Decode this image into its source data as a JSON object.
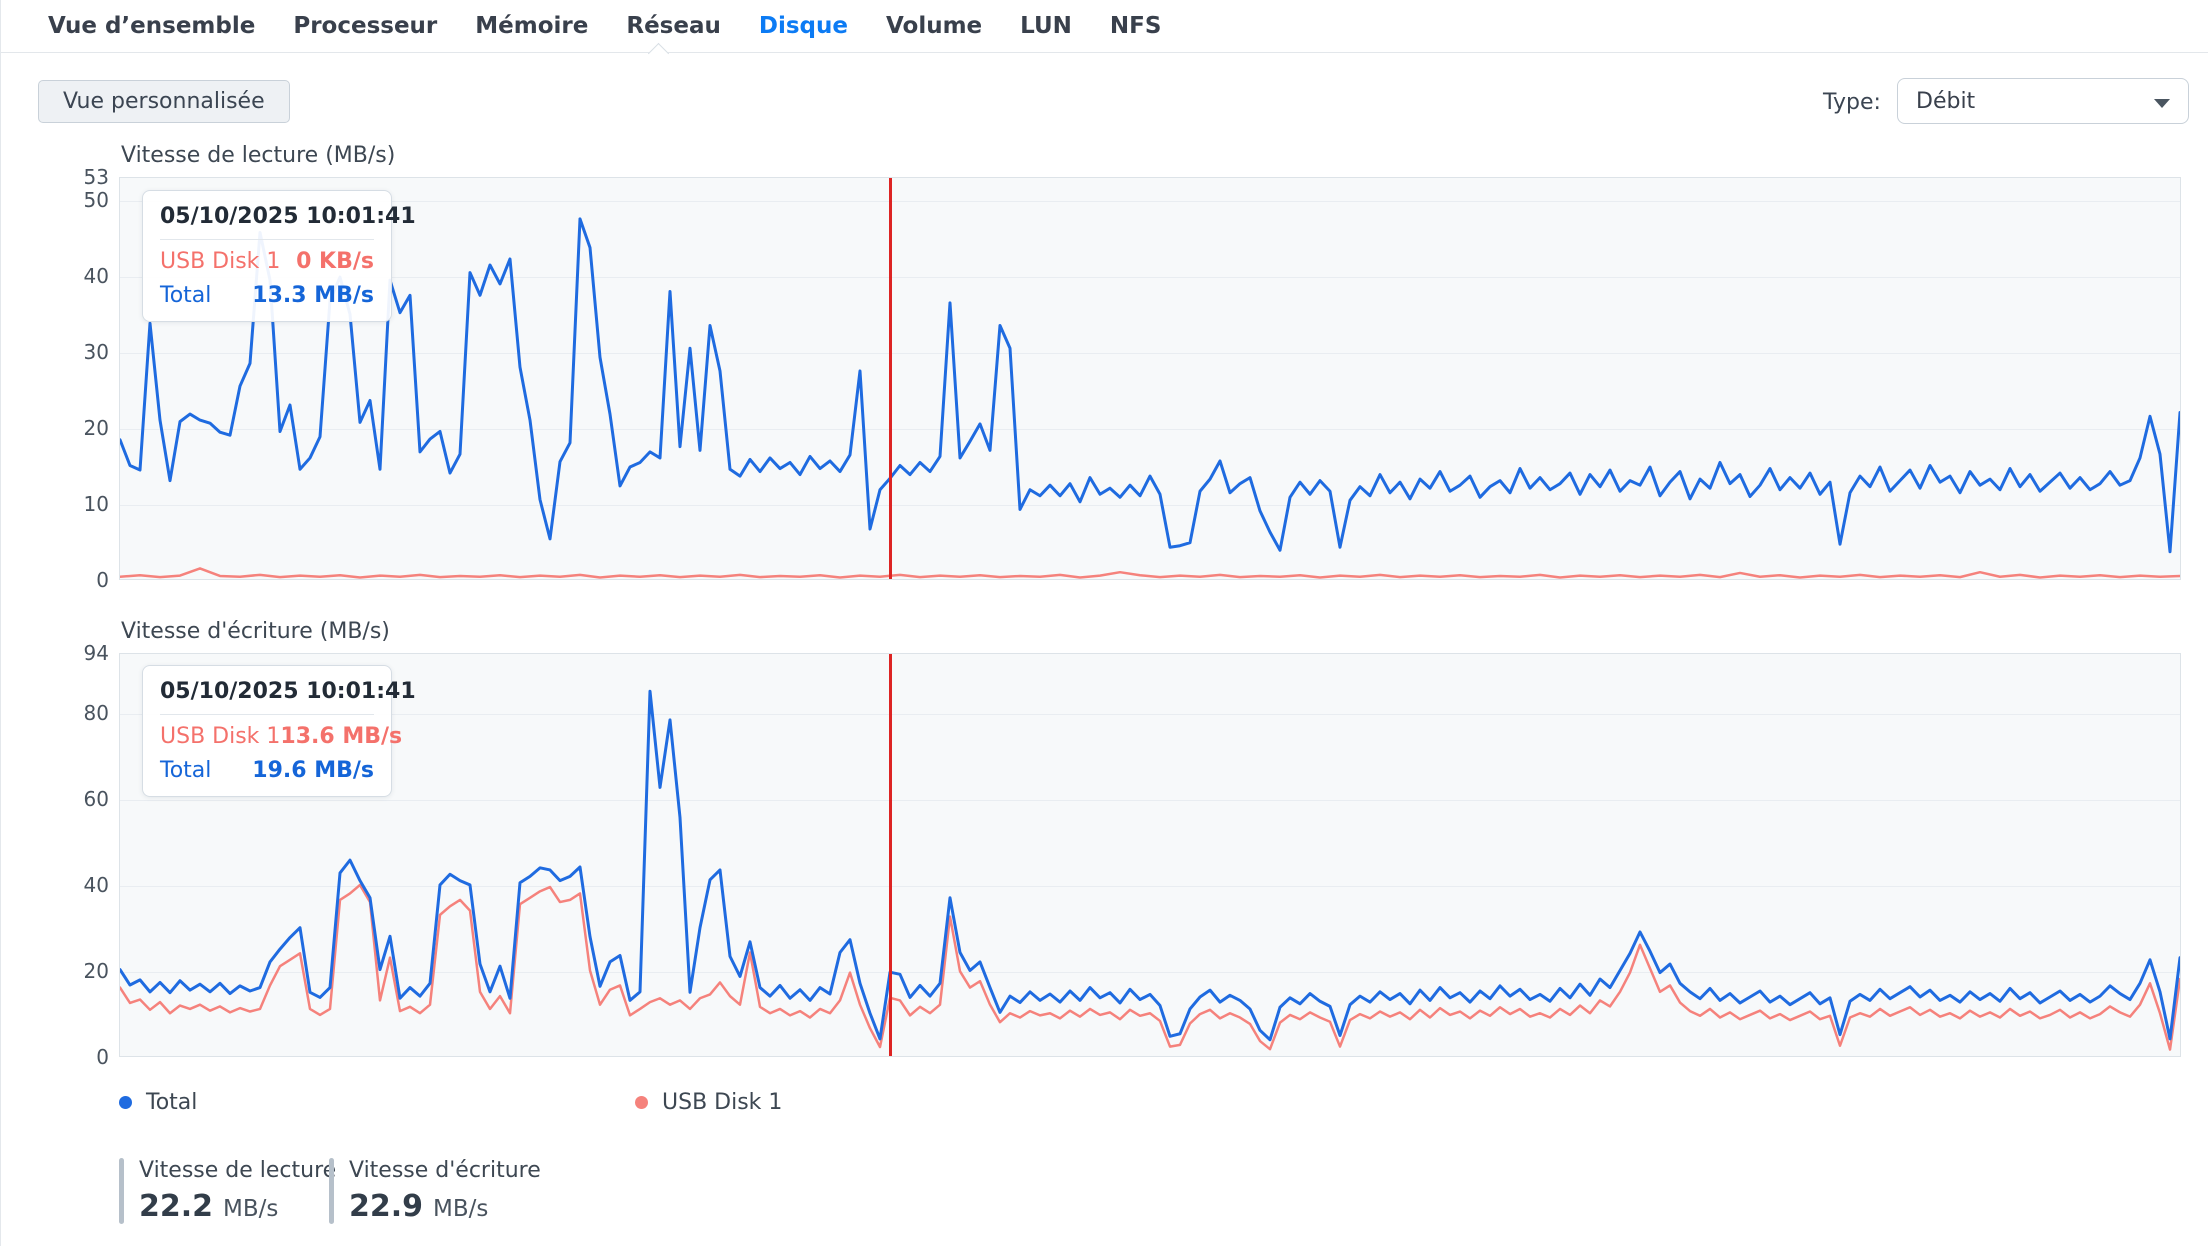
{
  "tabs": {
    "items": [
      "Vue d’ensemble",
      "Processeur",
      "Mémoire",
      "Réseau",
      "Disque",
      "Volume",
      "LUN",
      "NFS"
    ],
    "active": "Disque"
  },
  "toolbar": {
    "custom_view_label": "Vue personnalisée",
    "type_label": "Type:",
    "type_value": "Débit"
  },
  "legend": {
    "total": "Total",
    "usb": "USB Disk 1"
  },
  "summary": [
    {
      "label": "Vitesse de lecture",
      "value": "22.2",
      "unit": "MB/s"
    },
    {
      "label": "Vitesse d'écriture",
      "value": "22.9",
      "unit": "MB/s"
    }
  ],
  "colors": {
    "accent_blue": "#0c7bf4",
    "line_blue": "#1f6be0",
    "line_red": "#f5827c",
    "cursor_red": "#dd2423"
  },
  "chart_data": [
    {
      "type": "line",
      "title": "Vitesse de lecture (MB/s)",
      "ylabel": "MB/s",
      "ymax": 53,
      "ylim": [
        0,
        53
      ],
      "yticks": [
        53,
        50,
        40,
        30,
        20,
        10,
        0
      ],
      "grid": true,
      "legend_position": "bottom",
      "cursor_x_fraction": 0.3734,
      "tooltip": {
        "timestamp": "05/10/2025 10:01:41",
        "rows": [
          {
            "label": "USB Disk 1",
            "value": "0 KB/s"
          },
          {
            "label": "Total",
            "value": "13.3 MB/s"
          }
        ]
      },
      "series": [
        {
          "name": "USB Disk 1",
          "color": "#f5827c",
          "values": [
            0.3,
            0.5,
            0.25,
            0.45,
            1.4,
            0.4,
            0.3,
            0.55,
            0.25,
            0.45,
            0.3,
            0.5,
            0.2,
            0.45,
            0.3,
            0.55,
            0.25,
            0.4,
            0.3,
            0.5,
            0.25,
            0.45,
            0.3,
            0.55,
            0.2,
            0.45,
            0.3,
            0.5,
            0.25,
            0.45,
            0.3,
            0.55,
            0.25,
            0.4,
            0.3,
            0.5,
            0.2,
            0.45,
            0.3,
            0.55,
            0.25,
            0.45,
            0.3,
            0.5,
            0.25,
            0.4,
            0.3,
            0.55,
            0.2,
            0.45,
            0.9,
            0.5,
            0.25,
            0.45,
            0.3,
            0.55,
            0.25,
            0.4,
            0.3,
            0.5,
            0.2,
            0.45,
            0.3,
            0.55,
            0.25,
            0.45,
            0.3,
            0.5,
            0.25,
            0.4,
            0.3,
            0.55,
            0.2,
            0.45,
            0.3,
            0.5,
            0.25,
            0.45,
            0.3,
            0.55,
            0.25,
            0.8,
            0.3,
            0.5,
            0.2,
            0.45,
            0.3,
            0.55,
            0.25,
            0.45,
            0.3,
            0.5,
            0.25,
            0.9,
            0.3,
            0.55,
            0.2,
            0.45,
            0.3,
            0.5,
            0.25,
            0.45,
            0.3,
            0.4
          ]
        },
        {
          "name": "Total",
          "color": "#1f6be0",
          "values": [
            18.4,
            15.0,
            14.4,
            33.8,
            21.0,
            13.0,
            20.8,
            21.8,
            21.0,
            20.6,
            19.4,
            19.0,
            25.5,
            28.5,
            45.8,
            39.5,
            19.5,
            23.0,
            14.5,
            16.0,
            18.8,
            36.8,
            39.9,
            35.0,
            20.7,
            23.6,
            14.5,
            39.5,
            35.2,
            37.5,
            16.8,
            18.5,
            19.5,
            14.0,
            16.5,
            40.5,
            37.5,
            41.5,
            39.0,
            42.3,
            28.0,
            21.0,
            10.5,
            5.3,
            15.5,
            18.0,
            47.6,
            43.8,
            29.3,
            21.8,
            12.3,
            14.8,
            15.4,
            16.8,
            16.0,
            38.0,
            17.5,
            30.5,
            17.0,
            33.5,
            27.5,
            14.5,
            13.6,
            15.8,
            14.2,
            16.0,
            14.6,
            15.4,
            13.8,
            16.2,
            14.6,
            15.6,
            14.2,
            16.4,
            27.5,
            6.6,
            11.8,
            13.3,
            15.0,
            13.8,
            15.4,
            14.2,
            16.2,
            36.5,
            16.0,
            18.2,
            20.5,
            17.0,
            33.5,
            30.5,
            9.2,
            11.8,
            11.0,
            12.4,
            11.0,
            12.6,
            10.2,
            13.4,
            11.2,
            12.0,
            10.8,
            12.4,
            11.0,
            13.6,
            11.2,
            4.2,
            4.4,
            4.8,
            11.6,
            13.2,
            15.6,
            11.4,
            12.6,
            13.4,
            9.0,
            6.2,
            3.8,
            10.8,
            12.8,
            11.2,
            13.0,
            11.6,
            4.2,
            10.4,
            12.2,
            11.0,
            13.8,
            11.4,
            12.8,
            10.6,
            13.2,
            12.0,
            14.2,
            11.6,
            12.4,
            13.6,
            10.8,
            12.2,
            13.0,
            11.4,
            14.6,
            12.0,
            13.4,
            11.8,
            12.6,
            14.0,
            11.2,
            13.8,
            12.2,
            14.4,
            11.6,
            13.0,
            12.4,
            14.8,
            11.0,
            12.8,
            14.2,
            10.6,
            13.2,
            12.0,
            15.4,
            12.6,
            13.8,
            10.9,
            12.4,
            14.6,
            11.8,
            13.4,
            12.0,
            14.0,
            11.2,
            12.8,
            4.6,
            11.4,
            13.6,
            12.2,
            14.8,
            11.6,
            13.0,
            14.4,
            12.0,
            15.0,
            12.8,
            13.6,
            11.4,
            14.2,
            12.4,
            13.2,
            11.8,
            14.6,
            12.2,
            13.8,
            11.6,
            12.8,
            14.0,
            12.0,
            13.4,
            11.8,
            12.6,
            14.2,
            12.4,
            13.0,
            16.0,
            21.5,
            16.5,
            3.6,
            22.0
          ]
        }
      ]
    },
    {
      "type": "line",
      "title": "Vitesse d'écriture (MB/s)",
      "ylabel": "MB/s",
      "ymax": 94,
      "ylim": [
        0,
        94
      ],
      "yticks": [
        94,
        80,
        60,
        40,
        20,
        0
      ],
      "grid": true,
      "legend_position": "bottom",
      "cursor_x_fraction": 0.3734,
      "tooltip": {
        "timestamp": "05/10/2025 10:01:41",
        "rows": [
          {
            "label": "USB Disk 1",
            "value": "13.6 MB/s"
          },
          {
            "label": "Total",
            "value": "19.6 MB/s"
          }
        ]
      },
      "series": [
        {
          "name": "USB Disk 1",
          "color": "#f5827c",
          "values": [
            16.0,
            12.4,
            13.2,
            10.8,
            12.6,
            10.0,
            11.8,
            11.0,
            12.0,
            10.6,
            11.6,
            10.2,
            11.2,
            10.4,
            11.0,
            16.5,
            21.0,
            22.5,
            24.0,
            11.0,
            9.6,
            11.0,
            36.5,
            38.0,
            40.0,
            36.0,
            13.0,
            23.0,
            10.5,
            11.5,
            10.0,
            12.0,
            33.0,
            35.0,
            36.5,
            34.0,
            15.0,
            11.0,
            14.0,
            10.0,
            35.5,
            37.0,
            38.5,
            39.5,
            36.0,
            36.5,
            38.0,
            20.0,
            12.0,
            15.5,
            16.5,
            9.5,
            11.0,
            12.6,
            13.5,
            12.0,
            13.0,
            11.0,
            13.5,
            14.4,
            17.2,
            14.0,
            12.0,
            24.2,
            11.5,
            10.0,
            11.0,
            9.5,
            10.5,
            9.0,
            11.0,
            10.0,
            13.0,
            19.5,
            12.0,
            6.5,
            2.1,
            13.6,
            13.0,
            9.5,
            11.5,
            10.0,
            12.0,
            32.6,
            19.8,
            16.0,
            17.5,
            12.0,
            7.9,
            10.0,
            9.0,
            10.5,
            9.5,
            10.0,
            8.8,
            10.6,
            9.2,
            11.0,
            9.6,
            10.2,
            8.6,
            10.8,
            9.4,
            10.0,
            8.2,
            2.2,
            2.6,
            7.6,
            9.8,
            10.8,
            8.8,
            10.0,
            9.0,
            7.5,
            3.5,
            1.6,
            7.8,
            9.6,
            8.6,
            10.2,
            9.0,
            8.0,
            2.2,
            8.4,
            9.8,
            8.8,
            10.4,
            9.2,
            10.2,
            8.6,
            10.8,
            9.0,
            11.2,
            9.6,
            10.4,
            8.8,
            10.6,
            9.4,
            11.4,
            9.8,
            11.0,
            9.2,
            10.0,
            9.0,
            11.0,
            9.6,
            11.8,
            10.0,
            13.0,
            11.6,
            15.0,
            19.5,
            26.0,
            20.5,
            15.0,
            16.5,
            12.5,
            10.5,
            9.4,
            11.0,
            9.0,
            10.2,
            8.6,
            9.6,
            10.6,
            8.8,
            9.8,
            8.4,
            9.4,
            10.4,
            8.6,
            9.4,
            2.4,
            9.0,
            10.0,
            9.2,
            11.0,
            9.4,
            10.4,
            11.4,
            9.6,
            10.8,
            9.2,
            10.0,
            8.8,
            10.6,
            9.2,
            10.2,
            9.0,
            11.0,
            9.4,
            10.4,
            8.8,
            9.6,
            10.8,
            9.0,
            10.2,
            8.8,
            9.8,
            11.6,
            10.2,
            9.2,
            12.0,
            17.0,
            10.0,
            1.5,
            18.0
          ]
        },
        {
          "name": "Total",
          "color": "#1f6be0",
          "values": [
            20.2,
            16.6,
            17.8,
            15.0,
            17.2,
            14.8,
            17.6,
            15.4,
            16.8,
            15.0,
            17.0,
            14.6,
            16.4,
            15.2,
            16.0,
            22.0,
            25.0,
            27.7,
            30.0,
            14.9,
            13.7,
            16.0,
            42.8,
            45.8,
            41.0,
            37.0,
            20.2,
            28.0,
            13.5,
            16.0,
            14.0,
            17.0,
            40.0,
            42.5,
            41.0,
            40.0,
            21.5,
            15.0,
            21.0,
            13.5,
            40.5,
            42.0,
            44.0,
            43.5,
            41.0,
            42.0,
            44.2,
            27.9,
            16.3,
            22.0,
            23.5,
            13.0,
            15.0,
            85.3,
            62.8,
            78.6,
            55.8,
            14.9,
            30.0,
            41.2,
            43.5,
            23.3,
            18.6,
            26.7,
            16.0,
            14.0,
            16.5,
            13.5,
            15.5,
            13.0,
            16.0,
            14.5,
            24.2,
            27.2,
            17.0,
            10.0,
            4.0,
            19.6,
            19.1,
            13.7,
            16.5,
            14.0,
            17.0,
            37.0,
            24.2,
            20.0,
            22.0,
            16.0,
            10.2,
            14.0,
            12.5,
            15.0,
            13.0,
            14.5,
            12.6,
            15.2,
            13.0,
            16.0,
            13.6,
            14.8,
            12.4,
            15.6,
            13.2,
            14.4,
            11.8,
            4.6,
            5.2,
            11.0,
            13.8,
            15.4,
            12.6,
            14.2,
            13.0,
            11.0,
            6.0,
            3.8,
            11.4,
            13.6,
            12.2,
            14.6,
            12.8,
            11.6,
            4.8,
            12.0,
            14.0,
            12.6,
            15.0,
            13.2,
            14.6,
            12.2,
            15.4,
            13.0,
            16.0,
            13.6,
            14.8,
            12.6,
            15.2,
            13.4,
            16.4,
            14.0,
            15.6,
            13.2,
            14.4,
            12.8,
            15.8,
            13.6,
            16.8,
            14.2,
            18.0,
            16.0,
            20.0,
            24.0,
            29.0,
            24.5,
            19.5,
            21.5,
            17.0,
            15.0,
            13.4,
            15.8,
            13.0,
            14.6,
            12.4,
            13.8,
            15.2,
            12.6,
            14.0,
            12.0,
            13.4,
            14.8,
            12.2,
            13.6,
            5.0,
            12.8,
            14.4,
            13.0,
            15.6,
            13.4,
            14.8,
            16.2,
            13.8,
            15.4,
            13.0,
            14.2,
            12.6,
            15.0,
            13.2,
            14.6,
            12.8,
            15.8,
            13.4,
            14.8,
            12.4,
            13.8,
            15.2,
            13.0,
            14.4,
            12.6,
            14.0,
            16.4,
            14.6,
            13.2,
            17.0,
            22.5,
            15.0,
            4.0,
            23.0
          ]
        }
      ]
    }
  ]
}
